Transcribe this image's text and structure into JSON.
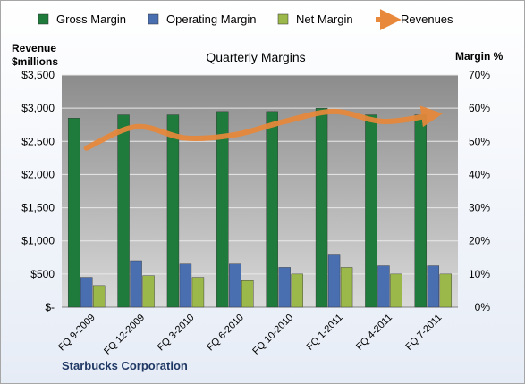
{
  "chart_data": {
    "type": "bar",
    "title": "Quarterly Margins",
    "left_axis_title_line1": "Revenue",
    "left_axis_title_line2": "$millions",
    "right_axis_title": "Margin %",
    "footer": "Starbucks Corporation",
    "categories": [
      "FQ 9-2009",
      "FQ 12-2009",
      "FQ 3-2010",
      "FQ 6-2010",
      "FQ 10-2010",
      "FQ 1-2011",
      "FQ 4-2011",
      "FQ 7-2011"
    ],
    "series": [
      {
        "name": "Gross Margin",
        "color": "#1e7b3c",
        "axis": "right",
        "values": [
          57,
          58,
          58,
          59,
          59,
          60,
          58,
          58
        ]
      },
      {
        "name": "Operating Margin",
        "color": "#4a6fb0",
        "axis": "right",
        "values": [
          9,
          14,
          13,
          13,
          12,
          16,
          12.5,
          12.5
        ]
      },
      {
        "name": "Net Margin",
        "color": "#9bb84b",
        "axis": "right",
        "values": [
          6.5,
          9.5,
          9,
          8,
          10,
          12,
          10,
          10
        ]
      },
      {
        "name": "Revenues",
        "color": "#e8883a",
        "axis": "left",
        "values": [
          2400,
          2720,
          2550,
          2600,
          2800,
          2950,
          2800,
          2900
        ]
      }
    ],
    "left_ticks": [
      "$-",
      "$500",
      "$1,000",
      "$1,500",
      "$2,000",
      "$2,500",
      "$3,000",
      "$3,500"
    ],
    "right_ticks": [
      "0%",
      "10%",
      "20%",
      "30%",
      "40%",
      "50%",
      "60%",
      "70%"
    ],
    "ylim_left": [
      0,
      3500
    ],
    "ylim_right": [
      0,
      70
    ],
    "grid": true,
    "legend_position": "top"
  }
}
